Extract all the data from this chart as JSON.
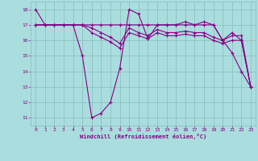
{
  "xlabel": "Windchill (Refroidissement éolien,°C)",
  "xlim": [
    -0.5,
    23.5
  ],
  "ylim": [
    10.5,
    18.5
  ],
  "yticks": [
    11,
    12,
    13,
    14,
    15,
    16,
    17,
    18
  ],
  "xticks": [
    0,
    1,
    2,
    3,
    4,
    5,
    6,
    7,
    8,
    9,
    10,
    11,
    12,
    13,
    14,
    15,
    16,
    17,
    18,
    19,
    20,
    21,
    22,
    23
  ],
  "background_color": "#aadddd",
  "grid_color": "#88bbbb",
  "line_color": "#880088",
  "series": [
    {
      "x": [
        0,
        1,
        2,
        3,
        4,
        5,
        6,
        7,
        8,
        9,
        10,
        11,
        12,
        13,
        14,
        15,
        16,
        17,
        18,
        19,
        20,
        21,
        22,
        23
      ],
      "y": [
        18,
        17,
        17,
        17,
        17,
        15,
        11,
        11.3,
        12,
        14.2,
        18,
        17.7,
        16.1,
        17,
        17,
        17,
        17.2,
        17,
        17,
        17,
        16,
        15.2,
        14,
        13
      ]
    },
    {
      "x": [
        0,
        1,
        2,
        3,
        4,
        5,
        6,
        7,
        8,
        9,
        10,
        11,
        12,
        13,
        14,
        15,
        16,
        17,
        18,
        19,
        20,
        21,
        22,
        23
      ],
      "y": [
        17,
        17,
        17,
        17,
        17,
        17,
        17,
        17,
        17,
        17,
        17,
        17,
        17,
        17,
        17,
        17,
        17,
        17,
        17.2,
        17,
        16,
        16.5,
        16,
        13
      ]
    },
    {
      "x": [
        0,
        1,
        2,
        3,
        4,
        5,
        6,
        7,
        8,
        9,
        10,
        11,
        12,
        13,
        14,
        15,
        16,
        17,
        18,
        19,
        20,
        21,
        22,
        23
      ],
      "y": [
        17,
        17,
        17,
        17,
        17,
        17,
        16.8,
        16.5,
        16.2,
        15.8,
        16.8,
        16.5,
        16.3,
        16.7,
        16.5,
        16.5,
        16.6,
        16.5,
        16.5,
        16.2,
        16,
        16.3,
        16.3,
        13
      ]
    },
    {
      "x": [
        0,
        1,
        2,
        3,
        4,
        5,
        6,
        7,
        8,
        9,
        10,
        11,
        12,
        13,
        14,
        15,
        16,
        17,
        18,
        19,
        20,
        21,
        22,
        23
      ],
      "y": [
        17,
        17,
        17,
        17,
        17,
        17,
        16.5,
        16.2,
        15.9,
        15.5,
        16.5,
        16.3,
        16.1,
        16.5,
        16.3,
        16.3,
        16.4,
        16.3,
        16.3,
        16.0,
        15.8,
        16.0,
        16.0,
        13
      ]
    }
  ]
}
